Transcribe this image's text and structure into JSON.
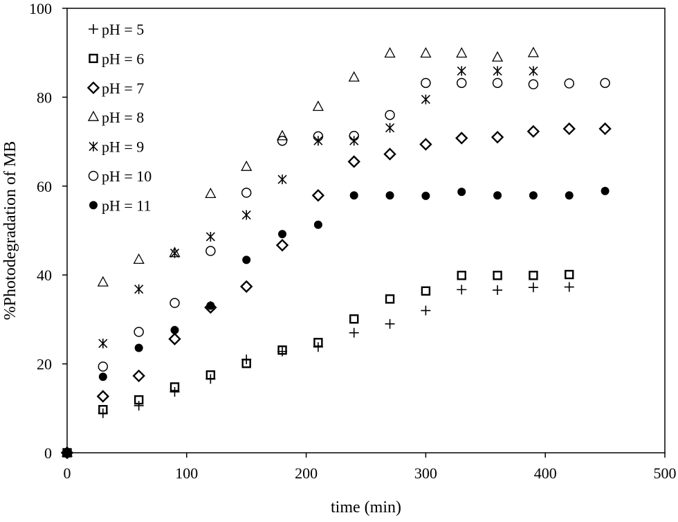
{
  "chart_data": {
    "type": "scatter",
    "title": "",
    "xlabel": "time (min)",
    "ylabel": "%Photodegradation of MB",
    "xlim": [
      0,
      500
    ],
    "ylim": [
      0,
      100
    ],
    "xticks": [
      0,
      100,
      200,
      300,
      400,
      500
    ],
    "yticks": [
      0,
      20,
      40,
      60,
      80,
      100
    ],
    "grid": false,
    "legend_position": "top-left",
    "series": [
      {
        "name": "pH = 5",
        "marker": "plus",
        "x": [
          0,
          30,
          60,
          90,
          120,
          150,
          180,
          210,
          240,
          270,
          300,
          330,
          360,
          390,
          420
        ],
        "y": [
          0,
          8.9,
          10.6,
          13.7,
          16.6,
          21.0,
          22.8,
          23.8,
          27.0,
          29.0,
          32.0,
          36.7,
          36.6,
          37.2,
          37.3
        ]
      },
      {
        "name": "pH = 6",
        "marker": "square",
        "x": [
          0,
          30,
          60,
          90,
          120,
          150,
          180,
          210,
          240,
          270,
          300,
          330,
          360,
          390,
          420
        ],
        "y": [
          0,
          9.7,
          11.9,
          14.8,
          17.5,
          20.1,
          23.1,
          24.8,
          30.1,
          34.6,
          36.4,
          39.9,
          39.9,
          39.9,
          40.1
        ]
      },
      {
        "name": "pH = 7",
        "marker": "diamond",
        "x": [
          0,
          30,
          60,
          90,
          120,
          150,
          180,
          210,
          240,
          270,
          300,
          330,
          360,
          390,
          420,
          450
        ],
        "y": [
          0,
          12.7,
          17.3,
          25.6,
          32.7,
          37.4,
          46.7,
          57.9,
          65.5,
          67.2,
          69.4,
          70.8,
          71.0,
          72.3,
          72.9,
          72.9
        ]
      },
      {
        "name": "pH = 8",
        "marker": "triangle",
        "x": [
          0,
          30,
          60,
          90,
          120,
          150,
          180,
          210,
          240,
          270,
          300,
          330,
          360,
          390
        ],
        "y": [
          0,
          38.3,
          43.4,
          44.9,
          58.2,
          64.3,
          71.2,
          77.8,
          84.4,
          89.8,
          89.8,
          89.8,
          88.9,
          89.9
        ]
      },
      {
        "name": "pH = 9",
        "marker": "asterisk",
        "x": [
          0,
          30,
          60,
          90,
          120,
          150,
          180,
          210,
          240,
          270,
          300,
          330,
          360,
          390
        ],
        "y": [
          0,
          24.6,
          36.8,
          44.9,
          48.6,
          53.5,
          61.5,
          70.2,
          70.2,
          73.1,
          79.5,
          85.9,
          85.9,
          85.9
        ]
      },
      {
        "name": "pH = 10",
        "marker": "circle",
        "x": [
          0,
          30,
          60,
          90,
          120,
          150,
          180,
          210,
          240,
          270,
          300,
          330,
          360,
          390,
          420,
          450
        ],
        "y": [
          0,
          19.4,
          27.2,
          33.7,
          45.4,
          58.5,
          70.2,
          71.2,
          71.3,
          76.0,
          83.2,
          83.2,
          83.2,
          82.9,
          83.1,
          83.2
        ]
      },
      {
        "name": "pH = 11",
        "marker": "filled-circle",
        "x": [
          0,
          30,
          60,
          90,
          120,
          150,
          180,
          210,
          240,
          270,
          300,
          330,
          360,
          390,
          420,
          450
        ],
        "y": [
          0,
          17.1,
          23.6,
          27.6,
          33.1,
          43.4,
          49.2,
          51.3,
          57.9,
          57.9,
          57.8,
          58.7,
          57.9,
          57.9,
          57.9,
          58.9
        ]
      }
    ]
  }
}
